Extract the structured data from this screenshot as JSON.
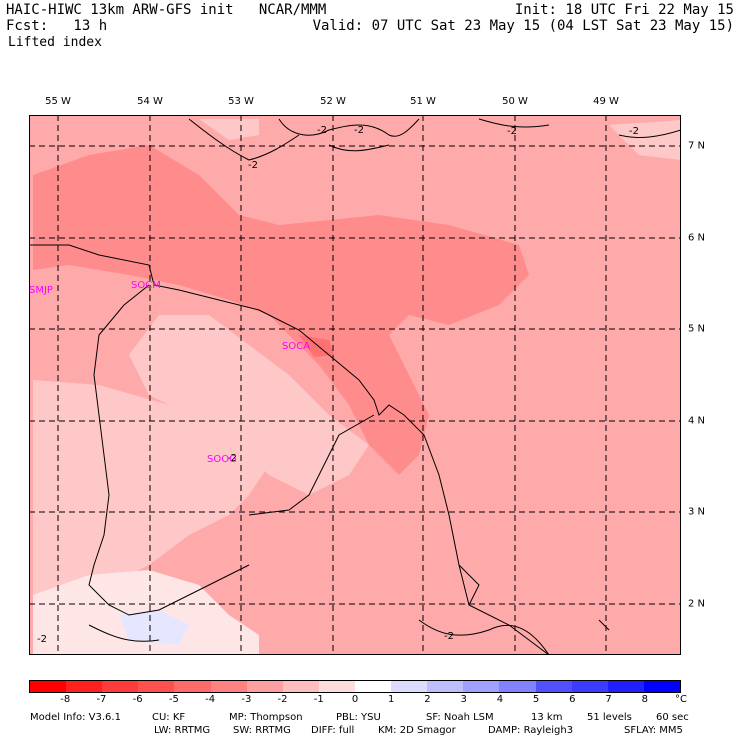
{
  "header": {
    "title": "HAIC-HIWC 13km ARW-GFS init   NCAR/MMM",
    "forecast": "Fcst:   13 h",
    "field": "Lifted index",
    "init": "Init: 18 UTC Fri 22 May 15",
    "valid": "Valid: 07 UTC Sat 23 May 15 (04 LST Sat 23 May 15)"
  },
  "map": {
    "longitudes": [
      "55 W",
      "54 W",
      "53 W",
      "52 W",
      "51 W",
      "50 W",
      "49 W"
    ],
    "latitudes": [
      "7 N",
      "6 N",
      "5 N",
      "4 N",
      "3 N",
      "2 N"
    ],
    "stations": [
      "SMJP",
      "SOCM",
      "SOCA",
      "SOOG"
    ],
    "contour_labels": [
      "-2",
      "-2",
      "-2",
      "-2",
      "-2",
      "-2",
      "-2",
      "-2"
    ],
    "colors": {
      "land_light": "#ffc8c8",
      "medium": "#ffaaaa",
      "darker": "#ff8c8c",
      "darkest": "#ff7070",
      "near_zero": "#ffe6e6"
    }
  },
  "colorbar": {
    "ticks": [
      "-8",
      "-7",
      "-6",
      "-5",
      "-4",
      "-3",
      "-2",
      "-1",
      "0",
      "1",
      "2",
      "3",
      "4",
      "5",
      "6",
      "7",
      "8"
    ],
    "unit": "°C",
    "colors": [
      "#ff0000",
      "#ff2020",
      "#ff3c3c",
      "#ff5050",
      "#ff6a6a",
      "#ff8282",
      "#ffa0a0",
      "#ffbebe",
      "#ffdcdc",
      "#ffffff",
      "#dcdcff",
      "#bebeff",
      "#a0a0ff",
      "#8282ff",
      "#5050ff",
      "#3c3cff",
      "#2020ff",
      "#0000ff"
    ]
  },
  "footer": {
    "line1": [
      "Model Info: V3.6.1",
      "CU: KF",
      "MP: Thompson",
      "PBL: YSU",
      "SF: Noah LSM",
      "13 km",
      "51 levels",
      "60 sec"
    ],
    "line2": [
      "LW: RRTMG",
      "SW: RRTMG",
      "DIFF: full",
      "KM: 2D Smagor",
      "DAMP: Rayleigh3",
      "SFLAY: MM5"
    ]
  }
}
